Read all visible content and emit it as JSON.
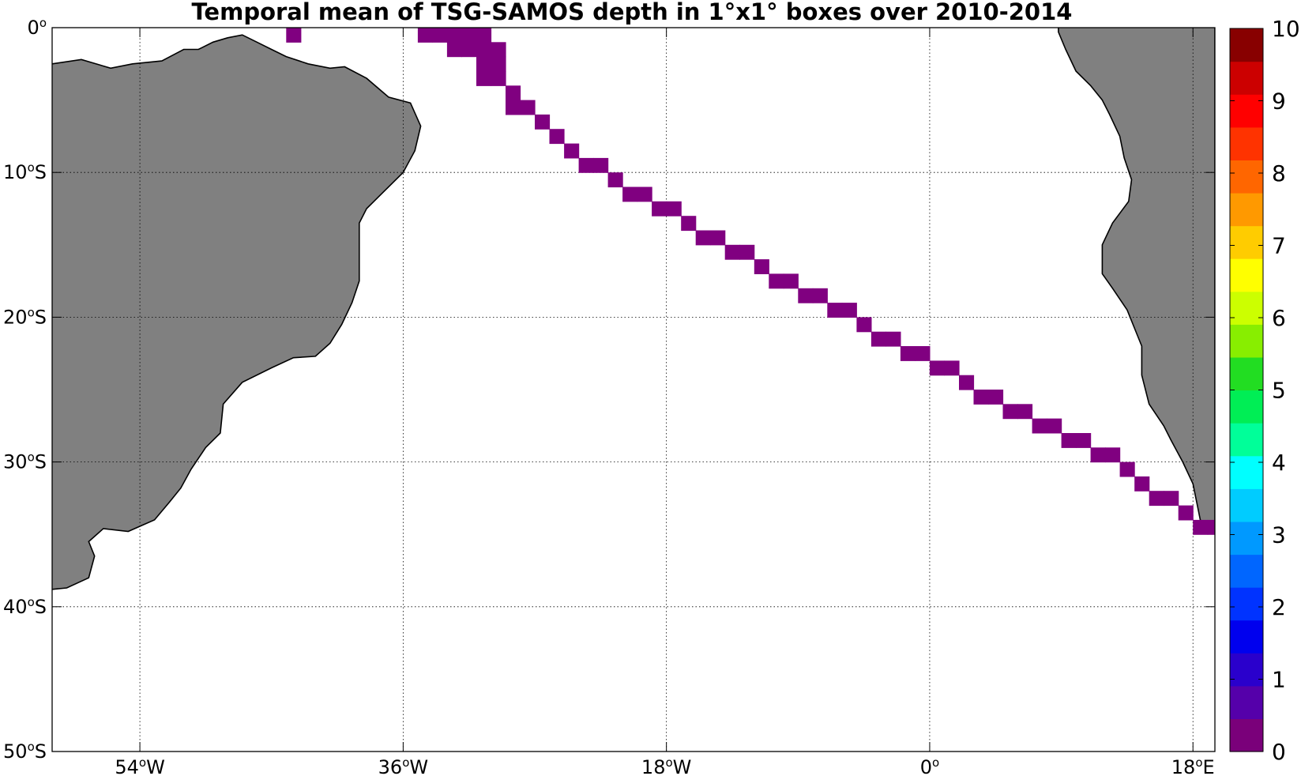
{
  "title": "Temporal mean of TSG-SAMOS depth in 1°x1° boxes over 2010-2014",
  "map": {
    "lon_range": [
      -60,
      19.5
    ],
    "lat_range": [
      -50,
      0
    ],
    "lat_ticks": [
      {
        "value": 0,
        "label": "0°"
      },
      {
        "value": -10,
        "label": "10°S"
      },
      {
        "value": -20,
        "label": "20°S"
      },
      {
        "value": -30,
        "label": "30°S"
      },
      {
        "value": -40,
        "label": "40°S"
      },
      {
        "value": -50,
        "label": "50°S"
      }
    ],
    "lon_ticks": [
      {
        "value": -54,
        "label": "54°W"
      },
      {
        "value": -36,
        "label": "36°W"
      },
      {
        "value": -18,
        "label": "18°W"
      },
      {
        "value": 0,
        "label": "0°"
      },
      {
        "value": 18,
        "label": "18°E"
      }
    ],
    "land_color": "#808080",
    "grid": true
  },
  "colorbar": {
    "range": [
      0,
      10
    ],
    "ticks": [
      "0",
      "1",
      "2",
      "3",
      "4",
      "5",
      "6",
      "7",
      "8",
      "9",
      "10"
    ],
    "colors": [
      "#7a007a",
      "#5500aa",
      "#2a00cc",
      "#0000ee",
      "#0033ff",
      "#0066ff",
      "#0099ff",
      "#00ccff",
      "#00ffff",
      "#00ff99",
      "#00ee55",
      "#22dd22",
      "#88ee00",
      "#ccff00",
      "#ffff00",
      "#ffcc00",
      "#ff9900",
      "#ff6600",
      "#ff3300",
      "#ff0000",
      "#cc0000",
      "#880000"
    ]
  },
  "track": {
    "value": 0,
    "color": "#800080",
    "cells": [
      [
        -43.5,
        -0.5
      ],
      [
        -34.5,
        -0.5
      ],
      [
        -33.5,
        -0.5
      ],
      [
        -32.5,
        -0.5
      ],
      [
        -31.5,
        -0.5
      ],
      [
        -30.5,
        -0.5
      ],
      [
        -32.5,
        -1.5
      ],
      [
        -31.5,
        -1.5
      ],
      [
        -30.5,
        -1.5
      ],
      [
        -29.5,
        -1.5
      ],
      [
        -30.5,
        -2.5
      ],
      [
        -29.5,
        -2.5
      ],
      [
        -30.5,
        -3.5
      ],
      [
        -29.5,
        -3.5
      ],
      [
        -28.5,
        -4.5
      ],
      [
        -28.5,
        -5.5
      ],
      [
        -27.5,
        -5.5
      ],
      [
        -26.5,
        -6.5
      ],
      [
        -25.5,
        -7.5
      ],
      [
        -24.5,
        -8.5
      ],
      [
        -23.5,
        -9.5
      ],
      [
        -22.5,
        -9.5
      ],
      [
        -21.5,
        -10.5
      ],
      [
        -20.5,
        -11.5
      ],
      [
        -19.5,
        -11.5
      ],
      [
        -18.5,
        -12.5
      ],
      [
        -17.5,
        -12.5
      ],
      [
        -16.5,
        -13.5
      ],
      [
        -15.5,
        -14.5
      ],
      [
        -14.5,
        -14.5
      ],
      [
        -13.5,
        -15.5
      ],
      [
        -12.5,
        -15.5
      ],
      [
        -11.5,
        -16.5
      ],
      [
        -10.5,
        -17.5
      ],
      [
        -9.5,
        -17.5
      ],
      [
        -8.5,
        -18.5
      ],
      [
        -7.5,
        -18.5
      ],
      [
        -6.5,
        -19.5
      ],
      [
        -5.5,
        -19.5
      ],
      [
        -4.5,
        -20.5
      ],
      [
        -3.5,
        -21.5
      ],
      [
        -2.5,
        -21.5
      ],
      [
        -1.5,
        -22.5
      ],
      [
        -0.5,
        -22.5
      ],
      [
        0.5,
        -23.5
      ],
      [
        1.5,
        -23.5
      ],
      [
        2.5,
        -24.5
      ],
      [
        3.5,
        -25.5
      ],
      [
        4.5,
        -25.5
      ],
      [
        5.5,
        -26.5
      ],
      [
        6.5,
        -26.5
      ],
      [
        7.5,
        -27.5
      ],
      [
        8.5,
        -27.5
      ],
      [
        9.5,
        -28.5
      ],
      [
        10.5,
        -28.5
      ],
      [
        11.5,
        -29.5
      ],
      [
        12.5,
        -29.5
      ],
      [
        13.5,
        -30.5
      ],
      [
        14.5,
        -31.5
      ],
      [
        15.5,
        -32.5
      ],
      [
        16.5,
        -32.5
      ],
      [
        17.5,
        -33.5
      ],
      [
        18.5,
        -34.5
      ],
      [
        19.5,
        -34.5
      ]
    ]
  },
  "land": {
    "south_america": [
      [
        -60,
        -2.5
      ],
      [
        -58,
        -2.2
      ],
      [
        -56,
        -2.8
      ],
      [
        -54.5,
        -2.5
      ],
      [
        -52.5,
        -2.3
      ],
      [
        -51,
        -1.5
      ],
      [
        -50,
        -1.5
      ],
      [
        -49,
        -1
      ],
      [
        -48,
        -0.7
      ],
      [
        -47,
        -0.5
      ],
      [
        -46,
        -1
      ],
      [
        -45,
        -1.5
      ],
      [
        -44,
        -2
      ],
      [
        -42.5,
        -2.5
      ],
      [
        -41,
        -2.8
      ],
      [
        -40,
        -2.7
      ],
      [
        -38.5,
        -3.5
      ],
      [
        -37,
        -4.8
      ],
      [
        -35.5,
        -5.2
      ],
      [
        -34.8,
        -6.8
      ],
      [
        -35.2,
        -8.5
      ],
      [
        -36,
        -10
      ],
      [
        -37.5,
        -11.5
      ],
      [
        -38.5,
        -12.5
      ],
      [
        -39,
        -13.5
      ],
      [
        -39,
        -17.5
      ],
      [
        -39.5,
        -19
      ],
      [
        -40.2,
        -20.5
      ],
      [
        -41,
        -21.8
      ],
      [
        -42,
        -22.7
      ],
      [
        -43.5,
        -22.8
      ],
      [
        -45,
        -23.5
      ],
      [
        -47,
        -24.5
      ],
      [
        -48.3,
        -26
      ],
      [
        -48.5,
        -28
      ],
      [
        -49.5,
        -29
      ],
      [
        -50.5,
        -30.5
      ],
      [
        -51.2,
        -31.8
      ],
      [
        -52,
        -32.8
      ],
      [
        -53,
        -34
      ],
      [
        -54.8,
        -34.8
      ],
      [
        -56.5,
        -34.6
      ],
      [
        -57.5,
        -35.5
      ],
      [
        -57.1,
        -36.5
      ],
      [
        -57.5,
        -38
      ],
      [
        -59,
        -38.7
      ],
      [
        -62,
        -39
      ],
      [
        -62.5,
        -40.5
      ],
      [
        -65,
        -41.5
      ],
      [
        -63.5,
        -42.5
      ],
      [
        -65.5,
        -45
      ],
      [
        -67.5,
        -46.5
      ],
      [
        -66,
        -47.5
      ],
      [
        -68,
        -50.5
      ],
      [
        -75,
        -50.5
      ],
      [
        -75,
        -2.5
      ]
    ],
    "africa": [
      [
        8.8,
        0.5
      ],
      [
        8.8,
        -0.3
      ],
      [
        9.3,
        -1.5
      ],
      [
        10,
        -3
      ],
      [
        11,
        -4
      ],
      [
        11.8,
        -5
      ],
      [
        12.3,
        -6
      ],
      [
        13,
        -7.5
      ],
      [
        13.3,
        -9
      ],
      [
        13.8,
        -10.5
      ],
      [
        13.6,
        -12
      ],
      [
        12.5,
        -13.5
      ],
      [
        11.8,
        -15
      ],
      [
        11.8,
        -17
      ],
      [
        12.5,
        -18
      ],
      [
        13.5,
        -19.5
      ],
      [
        14.5,
        -22
      ],
      [
        14.5,
        -24
      ],
      [
        15,
        -26
      ],
      [
        16,
        -27.5
      ],
      [
        16.5,
        -28.5
      ],
      [
        17.3,
        -30
      ],
      [
        18,
        -31.5
      ],
      [
        18.3,
        -33
      ],
      [
        18.5,
        -34
      ],
      [
        19.5,
        -34.8
      ],
      [
        19.5,
        0.5
      ]
    ]
  }
}
